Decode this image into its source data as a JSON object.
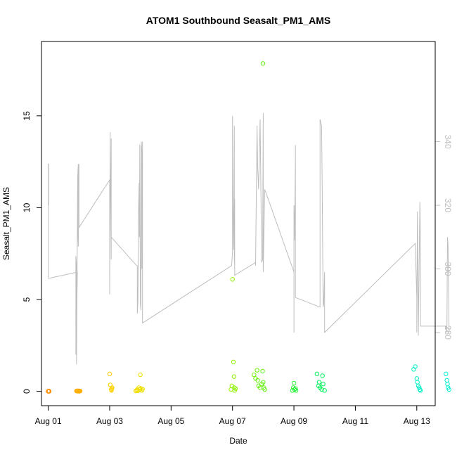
{
  "chart_data": {
    "type": "scatter",
    "title": "ATOM1 Southbound Seasalt_PM1_AMS",
    "xlabel": "Date",
    "ylabel": "Seasalt_PM1_AMS",
    "xlim": [
      -0.22,
      12.6
    ],
    "ylim": [
      -0.78,
      19.05
    ],
    "y2lim": [
      257.0,
      371.5
    ],
    "x_ticks": [
      {
        "value": 0,
        "label": "Aug 01"
      },
      {
        "value": 2,
        "label": "Aug 03"
      },
      {
        "value": 4,
        "label": "Aug 05"
      },
      {
        "value": 6,
        "label": "Aug 07"
      },
      {
        "value": 8,
        "label": "Aug 09"
      },
      {
        "value": 10,
        "label": "Aug 11"
      },
      {
        "value": 12,
        "label": "Aug 13"
      }
    ],
    "y_ticks": [
      0,
      5,
      10,
      15
    ],
    "y2_ticks": [
      280,
      300,
      320,
      340
    ],
    "color_gradient": [
      "#ff8c00",
      "#ffd400",
      "#d4f000",
      "#7cf000",
      "#00f050",
      "#00f0b0",
      "#00f0d8"
    ],
    "series": [
      {
        "x": [
          0.0,
          0.01,
          0.02,
          0.03,
          0.92,
          0.94,
          0.96,
          0.98,
          1.0,
          1.02,
          1.04,
          2.0,
          2.02,
          2.05,
          2.06,
          2.07,
          2.08,
          2.85,
          2.88,
          2.9,
          2.92,
          2.95,
          2.98,
          3.0,
          3.02,
          3.05,
          3.07,
          5.95,
          5.98,
          6.0,
          6.03,
          6.05,
          6.06,
          6.07,
          6.1,
          6.7,
          6.75,
          6.8,
          6.82,
          6.85,
          6.9,
          6.95,
          6.98,
          6.99,
          7.0,
          7.02,
          7.05,
          7.95,
          7.98,
          8.0,
          8.02,
          8.05,
          8.07,
          8.75,
          8.8,
          8.82,
          8.85,
          8.9,
          8.93,
          8.95,
          9.0,
          11.9,
          11.95,
          12.0,
          12.02,
          12.05,
          12.08,
          12.1,
          12.12,
          12.95,
          12.98,
          13.0,
          13.02,
          13.05
        ],
        "y": [
          0.0,
          0.01,
          0.02,
          0.0,
          0.02,
          0.01,
          0.03,
          0.02,
          0.0,
          0.01,
          0.02,
          0.95,
          0.35,
          0.1,
          0.05,
          0.15,
          0.2,
          0.02,
          0.05,
          0.1,
          0.03,
          0.2,
          0.1,
          0.9,
          0.15,
          0.05,
          0.12,
          0.1,
          0.3,
          6.1,
          1.6,
          0.8,
          0.2,
          0.05,
          0.15,
          0.9,
          0.7,
          1.15,
          0.6,
          0.3,
          0.2,
          0.4,
          1.1,
          17.85,
          0.5,
          0.2,
          0.1,
          0.05,
          0.2,
          0.45,
          0.1,
          0.15,
          0.05,
          0.95,
          0.3,
          0.5,
          0.2,
          0.1,
          0.85,
          0.4,
          0.05,
          1.2,
          1.35,
          0.7,
          0.5,
          0.3,
          0.2,
          0.1,
          0.05,
          0.95,
          0.6,
          0.4,
          0.2,
          0.1
        ]
      },
      {
        "name": "",
        "axis": "right",
        "x": [
          0.0,
          0.0,
          0.01,
          0.01,
          0.95,
          0.9,
          0.9,
          0.9,
          0.92,
          0.92,
          0.96,
          0.98,
          0.96,
          0.98,
          1.0,
          1.0,
          2.0,
          2.0,
          2.02,
          2.02,
          2.05,
          2.05,
          2.05,
          2.88,
          2.9,
          2.9,
          2.92,
          2.94,
          2.96,
          2.97,
          2.98,
          3.0,
          3.02,
          3.03,
          3.05,
          3.05,
          3.07,
          3.07,
          3.07,
          5.97,
          6.0,
          6.0,
          6.03,
          6.05,
          6.06,
          6.06,
          6.07,
          6.07,
          6.07,
          6.75,
          6.75,
          6.8,
          6.82,
          6.85,
          6.9,
          6.95,
          6.98,
          7.0,
          7.0,
          7.05,
          8.0,
          8.0,
          8.0,
          8.02,
          8.05,
          8.05,
          8.05,
          8.85,
          8.85,
          8.85,
          8.9,
          8.92,
          8.95,
          8.97,
          9.0,
          9.0,
          9.0,
          11.95,
          12.0,
          12.0,
          12.02,
          12.05,
          12.05,
          12.1,
          12.12,
          12.12,
          12.95,
          12.98,
          13.0,
          13.02,
          13.05,
          13.05
        ],
        "y": [
          320,
          333,
          333,
          297,
          299,
          273,
          287,
          304,
          301,
          270,
          329,
          333,
          313,
          307,
          333,
          313,
          328,
          292,
          343,
          340,
          303,
          341,
          310,
          301,
          301,
          286,
          290,
          318,
          327,
          310,
          339,
          289,
          287,
          340,
          337,
          300,
          309,
          340,
          283,
          301,
          305,
          348,
          306,
          322,
          345,
          303,
          301,
          322,
          298,
          302,
          301,
          345,
          332,
          325,
          347,
          302,
          303,
          349,
          299,
          325,
          299,
          280,
          320,
          309,
          335,
          339,
          291,
          288,
          292,
          347,
          345,
          325,
          288,
          289,
          299,
          291,
          280,
          308,
          291,
          280,
          318,
          284,
          279,
          321,
          307,
          282,
          282,
          280,
          310,
          307,
          280,
          281
        ]
      }
    ]
  }
}
